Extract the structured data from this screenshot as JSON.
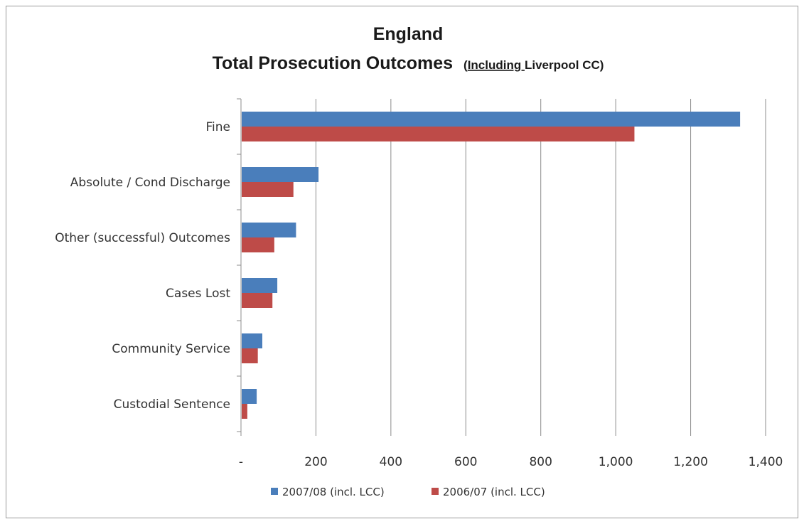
{
  "chart_data": {
    "type": "bar",
    "orientation": "horizontal",
    "title": "England",
    "subtitle_main": "Total Prosecution Outcomes",
    "subtitle_paren_open": "(",
    "subtitle_underlined": "Including ",
    "subtitle_rest": "Liverpool CC)",
    "categories": [
      "Fine",
      "Absolute / Cond Discharge",
      "Other (successful) Outcomes",
      "Cases Lost",
      "Community Service",
      "Custodial Sentence"
    ],
    "series": [
      {
        "name": "2007/08 (incl. LCC)",
        "color": "#4a7ebb",
        "values": [
          1330,
          205,
          145,
          95,
          55,
          40
        ]
      },
      {
        "name": "2006/07 (incl. LCC)",
        "color": "#be4b48",
        "values": [
          1048,
          138,
          87,
          82,
          43,
          15
        ]
      }
    ],
    "xlim": [
      0,
      1400
    ],
    "xticks": [
      0,
      200,
      400,
      600,
      800,
      1000,
      1200,
      1400
    ],
    "xtick_labels": [
      "-",
      "200",
      "400",
      "600",
      "800",
      "1,000",
      "1,200",
      "1,400"
    ],
    "grid": "vertical",
    "legend": "bottom"
  }
}
